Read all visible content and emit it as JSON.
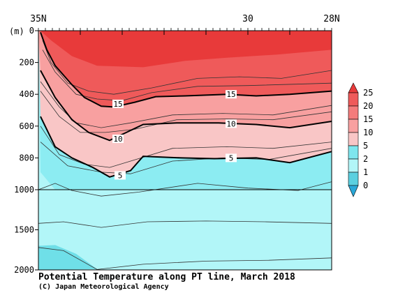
{
  "chart_data": {
    "type": "heatmap",
    "title": "Potential Temperature along PT line, March 2018",
    "credit": "(C) Japan Meteorological Agency",
    "x_unit_label": "",
    "y_unit_label": "(m)",
    "x_ticks": [
      {
        "lat": 35,
        "label": "35N"
      },
      {
        "lat": 30,
        "label": "30"
      },
      {
        "lat": 28,
        "label": "28N"
      }
    ],
    "xlim": [
      35,
      28
    ],
    "y_ticks": [
      {
        "depth": 0,
        "label": "0"
      },
      {
        "depth": 200,
        "label": "200"
      },
      {
        "depth": 400,
        "label": "400"
      },
      {
        "depth": 600,
        "label": "600"
      },
      {
        "depth": 800,
        "label": "800"
      },
      {
        "depth": 1000,
        "label": "1000"
      },
      {
        "depth": 1500,
        "label": "1500"
      },
      {
        "depth": 2000,
        "label": "2000"
      }
    ],
    "y_scale_note": "linear 0-1000 m upper panel, compressed 1000-2000 m lower panel",
    "colorbar": {
      "levels": [
        {
          "value": 25,
          "label": "25"
        },
        {
          "value": 20,
          "label": "20"
        },
        {
          "value": 15,
          "label": "15"
        },
        {
          "value": 10,
          "label": "10"
        },
        {
          "value": 5,
          "label": "5"
        },
        {
          "value": 2,
          "label": "2"
        },
        {
          "value": 1,
          "label": "1"
        },
        {
          "value": 0,
          "label": "0"
        }
      ],
      "colors_top_to_bottom": [
        "#e83a3a",
        "#ef5a5a",
        "#f47c7c",
        "#f8a0a0",
        "#f9c6c6",
        "#7ee6ee",
        "#b2f6f8",
        "#5bd0e0",
        "#2aa8d8"
      ]
    },
    "contours": [
      {
        "value": 15,
        "label": "15",
        "bold": true,
        "points": [
          [
            34.95,
            10
          ],
          [
            34.8,
            120
          ],
          [
            34.6,
            220
          ],
          [
            34.2,
            340
          ],
          [
            33.9,
            420
          ],
          [
            33.5,
            475
          ],
          [
            33.2,
            480
          ],
          [
            32.7,
            450
          ],
          [
            32.2,
            415
          ],
          [
            31.5,
            410
          ],
          [
            30.5,
            400
          ],
          [
            29.8,
            410
          ],
          [
            29.0,
            400
          ],
          [
            28.0,
            380
          ]
        ]
      },
      {
        "value": 10,
        "label": "10",
        "bold": true,
        "points": [
          [
            34.95,
            250
          ],
          [
            34.6,
            420
          ],
          [
            34.2,
            560
          ],
          [
            33.8,
            640
          ],
          [
            33.3,
            690
          ],
          [
            32.9,
            640
          ],
          [
            32.5,
            590
          ],
          [
            31.7,
            580
          ],
          [
            30.7,
            580
          ],
          [
            29.8,
            590
          ],
          [
            29.0,
            610
          ],
          [
            28.0,
            570
          ]
        ]
      },
      {
        "value": 5,
        "label": "5",
        "bold": true,
        "points": [
          [
            34.95,
            540
          ],
          [
            34.6,
            730
          ],
          [
            34.2,
            800
          ],
          [
            33.7,
            860
          ],
          [
            33.3,
            920
          ],
          [
            32.8,
            880
          ],
          [
            32.5,
            790
          ],
          [
            31.6,
            800
          ],
          [
            30.8,
            805
          ],
          [
            29.8,
            800
          ],
          [
            29.0,
            830
          ],
          [
            28.0,
            760
          ]
        ]
      }
    ],
    "point_labels": [
      {
        "text": "15",
        "lat": 33.1,
        "depth": 460
      },
      {
        "text": "15",
        "lat": 30.4,
        "depth": 400
      },
      {
        "text": "10",
        "lat": 33.1,
        "depth": 680
      },
      {
        "text": "10",
        "lat": 30.4,
        "depth": 585
      },
      {
        "text": "5",
        "lat": 33.05,
        "depth": 910
      },
      {
        "text": "5",
        "lat": 30.4,
        "depth": 800
      }
    ]
  }
}
